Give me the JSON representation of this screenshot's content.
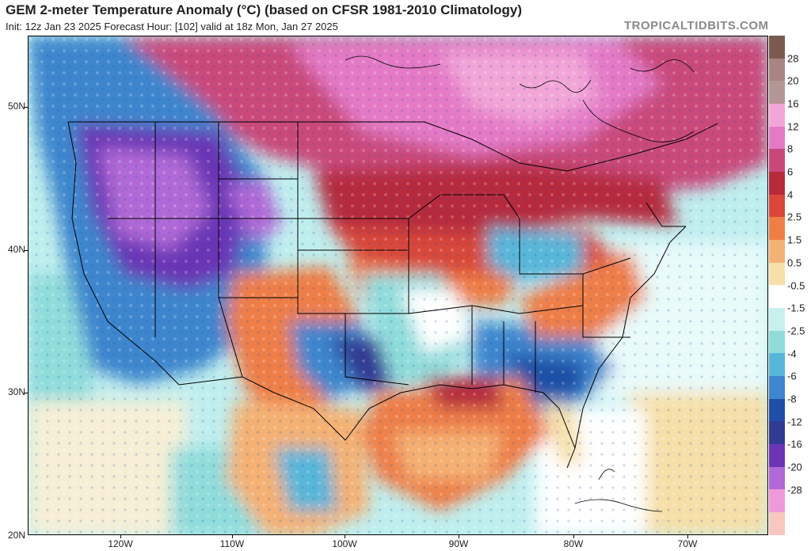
{
  "header": {
    "title": "GEM 2-meter Temperature Anomaly (°C) (based on CFSR 1981-2010 Climatology)",
    "subtitle": "Init: 12z Jan 23 2025   Forecast Hour: [102]   valid at 18z Mon, Jan 27 2025",
    "brand": "TROPICALTIDBITS.COM"
  },
  "axes": {
    "lat_labels": [
      "50N",
      "40N",
      "30N",
      "20N"
    ],
    "lon_labels": [
      "120W",
      "110W",
      "100W",
      "90W",
      "80W",
      "70W"
    ]
  },
  "colorbar": {
    "labels": [
      "28",
      "20",
      "16",
      "12",
      "8",
      "6",
      "4",
      "2.5",
      "1.5",
      "0.5",
      "-0.5",
      "-1.5",
      "-2.5",
      "-4",
      "-6",
      "-8",
      "-12",
      "-16",
      "-20",
      "-28"
    ],
    "colors": [
      "#7a5a50",
      "#a88582",
      "#b39795",
      "#f2a6d8",
      "#e47ac6",
      "#c9487a",
      "#b62a3c",
      "#d8473a",
      "#ee7e47",
      "#f4b173",
      "#f6dfa8",
      "#ffffff",
      "#c8f0ef",
      "#8fdcdb",
      "#58b6d9",
      "#3e86cd",
      "#1f4fa6",
      "#323b92",
      "#6b35b5",
      "#b069d6",
      "#f099d8",
      "#f7c8c0"
    ]
  },
  "map": {
    "regions": [
      {
        "name": "canada-warm",
        "color": "#e47ac6"
      },
      {
        "name": "northern-us-warm",
        "color": "#b62a3c"
      },
      {
        "name": "west-cold",
        "color": "#6b35b5"
      },
      {
        "name": "southeast-cold",
        "color": "#3e86cd"
      },
      {
        "name": "gulf-warm",
        "color": "#ee7e47"
      },
      {
        "name": "ocean-neutral",
        "color": "#c8f0ef"
      }
    ]
  }
}
